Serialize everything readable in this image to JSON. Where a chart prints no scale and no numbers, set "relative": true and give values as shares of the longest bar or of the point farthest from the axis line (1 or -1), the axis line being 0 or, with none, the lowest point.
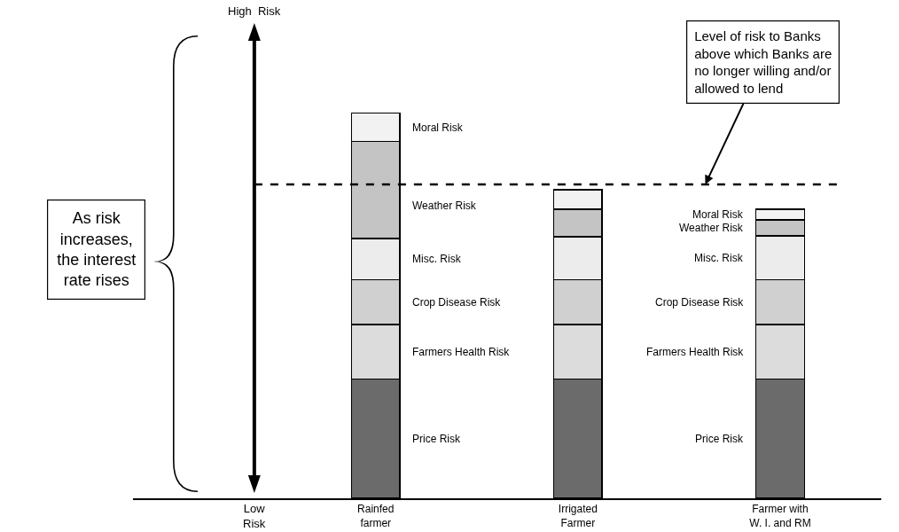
{
  "chart_data": {
    "type": "bar",
    "stacked": true,
    "relative": true,
    "legend": false,
    "grid": false,
    "categories": [
      "Rainfed\nfarmer",
      "Irrigated\nFarmer",
      "Farmer with\nW. I. and RM"
    ],
    "series": [
      {
        "name": "Price Risk",
        "color": "#6b6b6b",
        "values": [
          0.31,
          0.31,
          0.31
        ]
      },
      {
        "name": "Farmers Health Risk",
        "color": "#dcdcdc",
        "values": [
          0.141,
          0.141,
          0.141
        ]
      },
      {
        "name": "Crop Disease Risk",
        "color": "#d0d0d0",
        "values": [
          0.116,
          0.116,
          0.116
        ]
      },
      {
        "name": "Misc. Risk",
        "color": "#ececec",
        "values": [
          0.107,
          0.112,
          0.114
        ]
      },
      {
        "name": "Weather Risk",
        "color": "#c4c4c4",
        "values": [
          0.252,
          0.071,
          0.042
        ]
      },
      {
        "name": "Moral Risk",
        "color": "#f2f2f2",
        "values": [
          0.074,
          0.051,
          0.027
        ]
      }
    ],
    "ref_lines": [
      {
        "axis": "y",
        "value": 0.815,
        "label": "Level of risk to Banks\nabove which Banks are\nno longer willing and/or\nallowed to lend",
        "line_style": "dashed",
        "color": "#000000"
      }
    ],
    "annotations": [
      "High  Risk",
      "Low\nRisk",
      "As risk\nincreases,\nthe interest\nrate rises"
    ]
  }
}
